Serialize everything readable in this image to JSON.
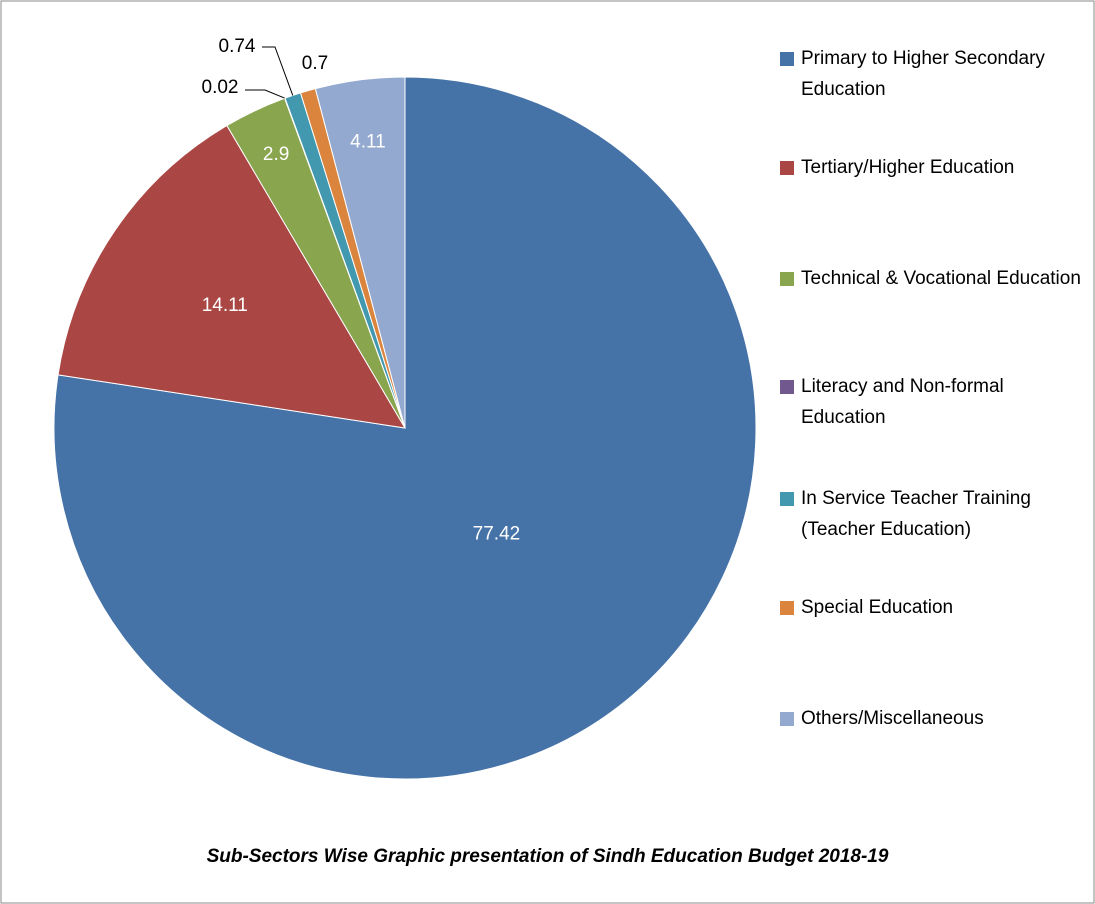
{
  "chart_data": {
    "type": "pie",
    "title": "Sub-Sectors Wise Graphic presentation of Sindh Education Budget 2018-19",
    "categories": [
      "Primary to Higher Secondary Education",
      "Tertiary/Higher Education",
      "Technical & Vocational Education",
      "Literacy and Non-formal Education",
      "In Service Teacher Training (Teacher Education)",
      "Special Education",
      "Others/Miscellaneous"
    ],
    "values": [
      77.42,
      14.11,
      2.9,
      0.02,
      0.74,
      0.7,
      4.11
    ],
    "colors": [
      "#4572a7",
      "#aa4643",
      "#89a54e",
      "#71588f",
      "#4198af",
      "#db843d",
      "#93a9cf"
    ],
    "legend": "right"
  }
}
